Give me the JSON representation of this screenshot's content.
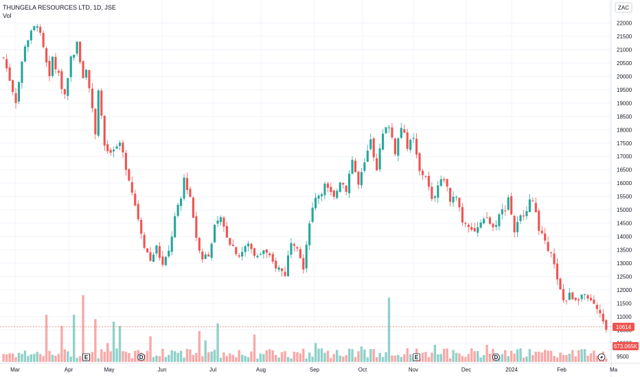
{
  "header": {
    "title": "THUNGELA RESOURCES LTD, 1D, JSE",
    "indicator": "Vol"
  },
  "currency_label": "ZAC",
  "colors": {
    "up": "#26a69a",
    "down": "#ef5350",
    "up_vol": "#8fd1c9",
    "down_vol": "#f7a9a7",
    "grid": "#f0f3fa",
    "text": "#131722"
  },
  "chart_data": {
    "type": "candlestick",
    "y_axis_ticks": [
      22000,
      21500,
      21000,
      20500,
      20000,
      19500,
      19000,
      18500,
      18000,
      17500,
      17000,
      16500,
      16000,
      15500,
      15000,
      14500,
      14000,
      13500,
      13000,
      12500,
      12000,
      11500,
      11000,
      10500,
      10000,
      9500
    ],
    "ylim": [
      9300,
      22400
    ],
    "x_axis_labels": [
      "Mar",
      "Apr",
      "May",
      "Jun",
      "Jul",
      "Aug",
      "Sep",
      "Oct",
      "Nov",
      "Dec",
      "2024",
      "Feb",
      "Ma"
    ],
    "anchor_path": [
      [
        0,
        20700
      ],
      [
        4,
        19100
      ],
      [
        7,
        21200
      ],
      [
        11,
        22000
      ],
      [
        13,
        21000
      ],
      [
        15,
        19900
      ],
      [
        16,
        20700
      ],
      [
        20,
        19300
      ],
      [
        22,
        20700
      ],
      [
        24,
        21200
      ],
      [
        26,
        20000
      ],
      [
        27,
        20400
      ],
      [
        30,
        17900
      ],
      [
        31,
        19600
      ],
      [
        33,
        17400
      ],
      [
        35,
        17000
      ],
      [
        38,
        17500
      ],
      [
        41,
        16200
      ],
      [
        44,
        14700
      ],
      [
        46,
        13700
      ],
      [
        48,
        13100
      ],
      [
        50,
        13600
      ],
      [
        52,
        12900
      ],
      [
        54,
        13400
      ],
      [
        56,
        14700
      ],
      [
        58,
        15400
      ],
      [
        59,
        16200
      ],
      [
        61,
        15500
      ],
      [
        63,
        14000
      ],
      [
        65,
        13200
      ],
      [
        67,
        13400
      ],
      [
        69,
        14300
      ],
      [
        71,
        14600
      ],
      [
        74,
        13800
      ],
      [
        77,
        13300
      ],
      [
        80,
        13700
      ],
      [
        83,
        13200
      ],
      [
        85,
        13500
      ],
      [
        88,
        13000
      ],
      [
        90,
        12800
      ],
      [
        92,
        12600
      ],
      [
        94,
        13900
      ],
      [
        96,
        13700
      ],
      [
        98,
        12900
      ],
      [
        100,
        14600
      ],
      [
        102,
        15400
      ],
      [
        105,
        15900
      ],
      [
        108,
        15400
      ],
      [
        110,
        16100
      ],
      [
        112,
        15800
      ],
      [
        114,
        16900
      ],
      [
        116,
        15900
      ],
      [
        118,
        16700
      ],
      [
        120,
        17600
      ],
      [
        122,
        16600
      ],
      [
        124,
        17800
      ],
      [
        126,
        18200
      ],
      [
        128,
        17200
      ],
      [
        130,
        18100
      ],
      [
        132,
        17400
      ],
      [
        134,
        17600
      ],
      [
        136,
        16400
      ],
      [
        138,
        16300
      ],
      [
        140,
        15300
      ],
      [
        142,
        15900
      ],
      [
        144,
        16200
      ],
      [
        146,
        15400
      ],
      [
        148,
        15600
      ],
      [
        150,
        14600
      ],
      [
        152,
        14500
      ],
      [
        154,
        14200
      ],
      [
        156,
        14400
      ],
      [
        158,
        14700
      ],
      [
        160,
        14300
      ],
      [
        162,
        14800
      ],
      [
        164,
        15100
      ],
      [
        165,
        15500
      ],
      [
        167,
        14200
      ],
      [
        169,
        14700
      ],
      [
        171,
        15100
      ],
      [
        173,
        15400
      ],
      [
        175,
        14300
      ],
      [
        177,
        13700
      ],
      [
        179,
        13500
      ],
      [
        181,
        12300
      ],
      [
        183,
        11600
      ],
      [
        185,
        11800
      ],
      [
        187,
        11700
      ],
      [
        189,
        11800
      ],
      [
        191,
        11600
      ],
      [
        193,
        11400
      ],
      [
        195,
        11000
      ],
      [
        197,
        10614
      ]
    ],
    "last_price": "10614",
    "last_volume": "673.065K",
    "events": [
      {
        "label": "E",
        "bar": 27,
        "shape": "square"
      },
      {
        "label": "D",
        "bar": 45,
        "shape": "circle"
      },
      {
        "label": "E",
        "bar": 135,
        "shape": "square"
      },
      {
        "label": "D",
        "bar": 161,
        "shape": "circle"
      }
    ],
    "volume_spikes": [
      [
        14,
        0.55
      ],
      [
        19,
        0.42
      ],
      [
        23,
        0.55
      ],
      [
        26,
        0.78
      ],
      [
        30,
        0.5
      ],
      [
        34,
        0.22
      ],
      [
        36,
        0.47
      ],
      [
        38,
        0.42
      ],
      [
        48,
        0.3
      ],
      [
        64,
        0.36
      ],
      [
        66,
        0.25
      ],
      [
        70,
        0.45
      ],
      [
        82,
        0.32
      ],
      [
        95,
        0.12
      ],
      [
        102,
        0.22
      ],
      [
        109,
        0.14
      ],
      [
        117,
        0.18
      ],
      [
        120,
        0.15
      ],
      [
        126,
        0.75
      ],
      [
        132,
        0.16
      ],
      [
        141,
        0.2
      ],
      [
        147,
        0.14
      ],
      [
        158,
        0.2
      ],
      [
        172,
        0.15
      ],
      [
        175,
        0.12
      ],
      [
        184,
        0.08
      ],
      [
        192,
        0.1
      ],
      [
        196,
        0.12
      ]
    ]
  }
}
